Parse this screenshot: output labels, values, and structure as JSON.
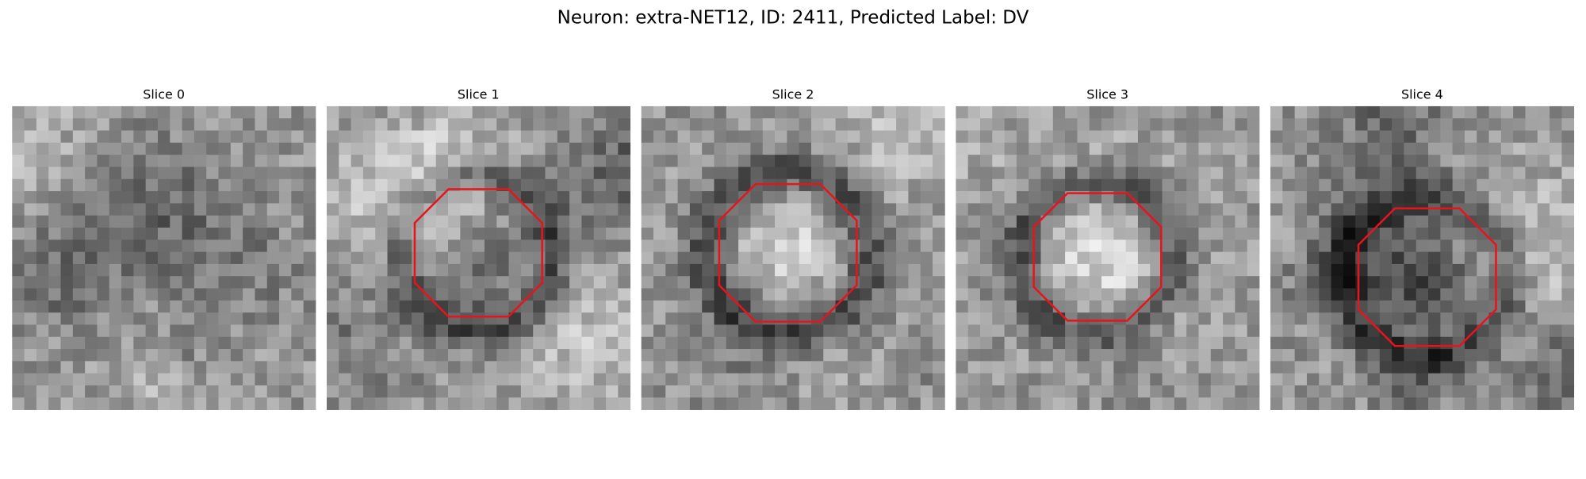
{
  "title": "Neuron: extra-NET12, ID: 2411, Predicted Label: DV",
  "panels": [
    {
      "title": "Slice 0"
    },
    {
      "title": "Slice 1"
    },
    {
      "title": "Slice 2"
    },
    {
      "title": "Slice 3"
    },
    {
      "title": "Slice 4"
    }
  ]
}
